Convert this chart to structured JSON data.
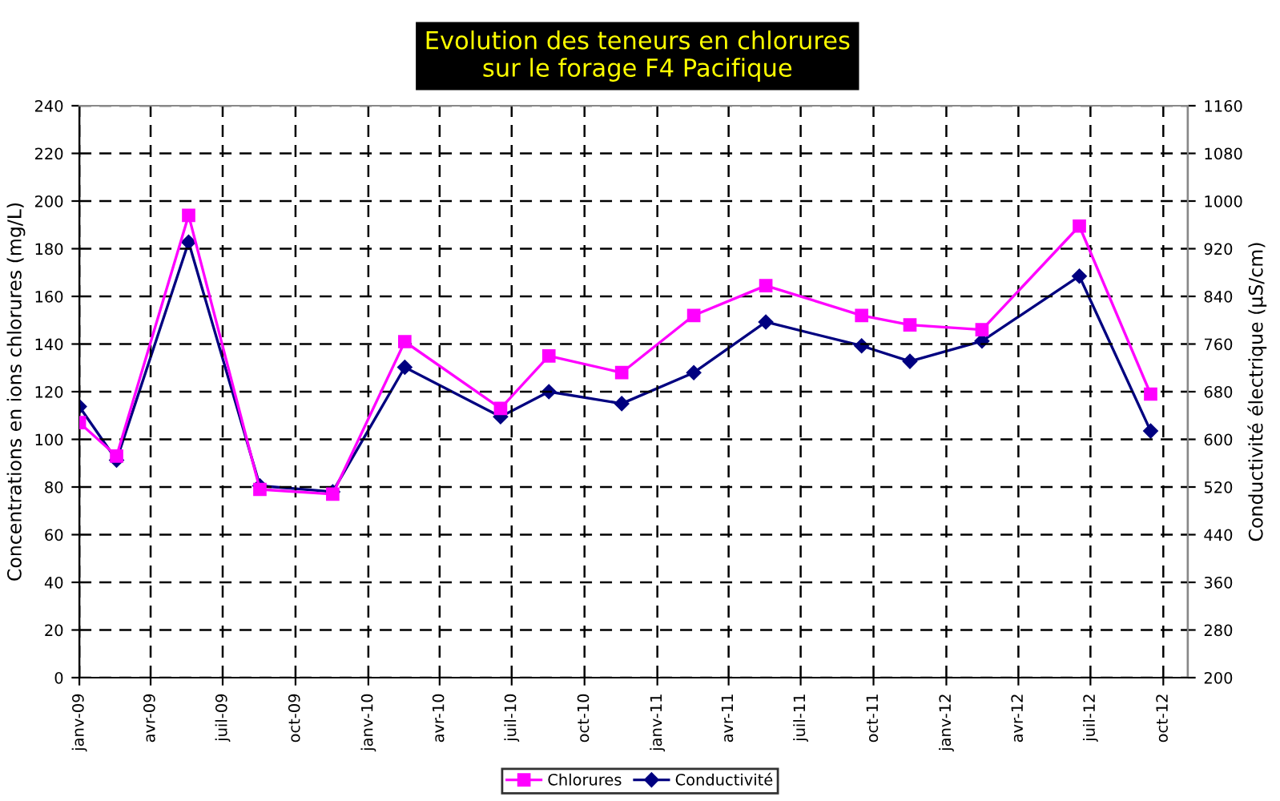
{
  "chart_data": {
    "type": "line",
    "title": "Evolution des teneurs en chlorures\nsur le forage F4 Pacifique",
    "ylabel": "Concentrations en ions chlorures (mg/L)",
    "y2label": "Conductivité électrique (µS/cm)",
    "series": [
      {
        "name": "Chlorures",
        "color": "#ff00ff",
        "marker": "square",
        "x": [
          "2009-01-01",
          "2009-02-17",
          "2009-05-19",
          "2009-08-17",
          "2009-11-17",
          "2010-02-16",
          "2010-06-17",
          "2010-08-17",
          "2010-11-17",
          "2011-02-16",
          "2011-05-18",
          "2011-09-16",
          "2011-11-16",
          "2012-02-15",
          "2012-06-17",
          "2012-09-15"
        ],
        "values": [
          107,
          93,
          194,
          79,
          77,
          141,
          113,
          135,
          128,
          152,
          164.5,
          152,
          148,
          146,
          189.5,
          119
        ]
      },
      {
        "name": "Conductivité",
        "color": "#000080",
        "marker": "diamond",
        "axis": "y2",
        "x": [
          "2009-01-01",
          "2009-02-17",
          "2009-05-19",
          "2009-08-17",
          "2009-11-17",
          "2010-02-16",
          "2010-06-17",
          "2010-08-17",
          "2010-11-17",
          "2011-02-16",
          "2011-05-18",
          "2011-09-16",
          "2011-11-16",
          "2012-02-15",
          "2012-06-17",
          "2012-09-15"
        ],
        "values": [
          655,
          565,
          931,
          522,
          512,
          721,
          638,
          680,
          660,
          712,
          797,
          757,
          731,
          765,
          874,
          614
        ]
      }
    ],
    "xlim": [
      "2009-01-01",
      "2012-11-01"
    ],
    "xticks": [
      {
        "value": "2009-01-01",
        "label": "janv-09"
      },
      {
        "value": "2009-04-01",
        "label": "avr-09"
      },
      {
        "value": "2009-07-01",
        "label": "juil-09"
      },
      {
        "value": "2009-10-01",
        "label": "oct-09"
      },
      {
        "value": "2010-01-01",
        "label": "janv-10"
      },
      {
        "value": "2010-04-01",
        "label": "avr-10"
      },
      {
        "value": "2010-07-01",
        "label": "juil-10"
      },
      {
        "value": "2010-10-01",
        "label": "oct-10"
      },
      {
        "value": "2011-01-01",
        "label": "janv-11"
      },
      {
        "value": "2011-04-01",
        "label": "avr-11"
      },
      {
        "value": "2011-07-01",
        "label": "juil-11"
      },
      {
        "value": "2011-10-01",
        "label": "oct-11"
      },
      {
        "value": "2012-01-01",
        "label": "janv-12"
      },
      {
        "value": "2012-04-01",
        "label": "avr-12"
      },
      {
        "value": "2012-07-01",
        "label": "juil-12"
      },
      {
        "value": "2012-10-01",
        "label": "oct-12"
      }
    ],
    "ylim": [
      0,
      240
    ],
    "yticks": [
      0,
      20,
      40,
      60,
      80,
      100,
      120,
      140,
      160,
      180,
      200,
      220,
      240
    ],
    "y2lim": [
      200,
      1160
    ],
    "y2ticks": [
      200,
      280,
      360,
      440,
      520,
      600,
      680,
      760,
      840,
      920,
      1000,
      1080,
      1160
    ],
    "grid": true,
    "line_style": "solid",
    "legend": "bottom"
  }
}
